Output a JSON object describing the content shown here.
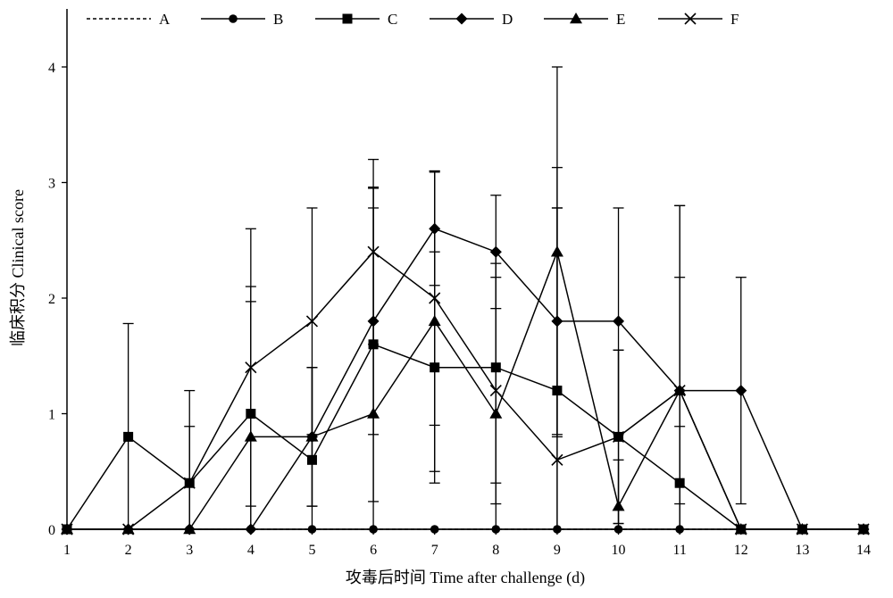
{
  "chart_data": {
    "type": "line",
    "xlabel": "攻毒后时间 Time after challenge (d)",
    "ylabel": "临床积分 Clinical score",
    "xlim": [
      1,
      14
    ],
    "ylim": [
      0,
      4.5
    ],
    "xticks": [
      1,
      2,
      3,
      4,
      5,
      6,
      7,
      8,
      9,
      10,
      11,
      12,
      13,
      14
    ],
    "yticks": [
      0,
      1,
      2,
      3,
      4
    ],
    "grid": false,
    "legend": "top",
    "x": [
      1,
      2,
      3,
      4,
      5,
      6,
      7,
      8,
      9,
      10,
      11,
      12,
      13,
      14
    ],
    "series": [
      {
        "name": "A",
        "marker": "none",
        "dashed": true,
        "values": [
          0,
          0,
          0,
          0,
          0,
          0,
          0,
          0,
          0,
          0,
          0,
          0,
          0,
          0
        ],
        "errors": [
          0,
          0,
          0,
          0,
          0,
          0,
          0,
          0,
          0,
          0,
          0,
          0,
          0,
          0
        ]
      },
      {
        "name": "B",
        "marker": "circle",
        "dashed": false,
        "values": [
          0,
          0,
          0,
          0,
          0,
          0,
          0,
          0,
          0,
          0,
          0,
          0,
          0,
          0
        ],
        "errors": [
          0,
          0,
          0,
          0,
          0,
          0,
          0,
          0,
          0,
          0,
          0,
          0,
          0,
          0
        ]
      },
      {
        "name": "C",
        "marker": "square",
        "dashed": false,
        "values": [
          0,
          0.8,
          0.4,
          1.0,
          0.6,
          1.6,
          1.4,
          1.4,
          1.2,
          0.8,
          0.4,
          0,
          0,
          0
        ],
        "errors": [
          0,
          0.98,
          0.49,
          1.1,
          0.8,
          1.36,
          1.0,
          1.0,
          1.93,
          0.75,
          0.49,
          0,
          0,
          0
        ]
      },
      {
        "name": "D",
        "marker": "diamond",
        "dashed": false,
        "values": [
          0,
          0,
          0,
          0,
          0.8,
          1.8,
          2.6,
          2.4,
          1.8,
          1.8,
          1.2,
          1.2,
          0,
          0
        ],
        "errors": [
          0,
          0,
          0,
          0,
          0.6,
          0.98,
          0.49,
          0.49,
          0.98,
          0.98,
          1.6,
          0.98,
          0,
          0
        ]
      },
      {
        "name": "E",
        "marker": "triangle",
        "dashed": false,
        "values": [
          0,
          0,
          0,
          0.8,
          0.8,
          1.0,
          1.8,
          1.0,
          2.4,
          0.2,
          1.2,
          0,
          0,
          0
        ],
        "errors": [
          0,
          0,
          0,
          1.17,
          0.6,
          1.95,
          1.3,
          1.3,
          1.6,
          0.4,
          0.98,
          0,
          0,
          0
        ]
      },
      {
        "name": "F",
        "marker": "x",
        "dashed": false,
        "values": [
          0,
          0,
          0.4,
          1.4,
          1.8,
          2.4,
          2.0,
          1.2,
          0.6,
          0.8,
          1.2,
          0,
          0,
          0
        ],
        "errors": [
          0,
          0,
          0.8,
          1.2,
          0.98,
          0.8,
          1.1,
          0.98,
          2.18,
          0.75,
          1.6,
          0,
          0,
          0
        ]
      }
    ]
  }
}
